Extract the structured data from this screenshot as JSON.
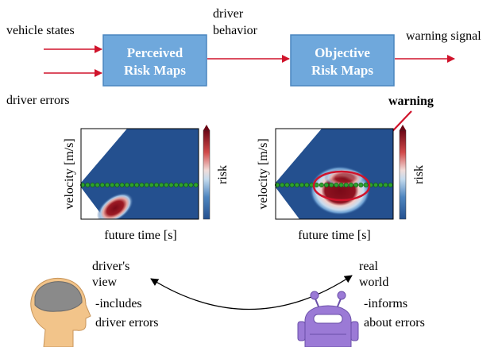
{
  "inputs": {
    "vehicle_states": "vehicle states",
    "driver_errors": "driver errors"
  },
  "boxes": {
    "perceived": [
      "Perceived",
      "Risk Maps"
    ],
    "objective": [
      "Objective",
      "Risk Maps"
    ]
  },
  "edges": {
    "driver_behavior": [
      "driver",
      "behavior"
    ],
    "warning_signal": "warning signal",
    "warning": "warning"
  },
  "plots": [
    {
      "ylabel": "velocity [m/s]",
      "xlabel": "future time [s]",
      "colorbar": "risk"
    },
    {
      "ylabel": "velocity [m/s]",
      "xlabel": "future time [s]",
      "colorbar": "risk"
    }
  ],
  "views": {
    "driver_view": [
      "driver's",
      "view"
    ],
    "real_world": [
      "real",
      "world"
    ],
    "includes": [
      "-includes",
      "driver errors"
    ],
    "informs": [
      "-informs",
      "about errors"
    ]
  },
  "colors": {
    "box_fill": "#6fa8dc",
    "box_stroke": "#4a86bf",
    "arrow": "#d0142c",
    "plot_bg": "#24508f",
    "risk_high": "#7a0a18",
    "trajectory": "#2ea22e",
    "head": "#f2c48a",
    "brain": "#8a8a8a",
    "robot": "#9b7ad6"
  },
  "icons": {
    "driver": "human-head-icon",
    "world": "robot-icon"
  }
}
